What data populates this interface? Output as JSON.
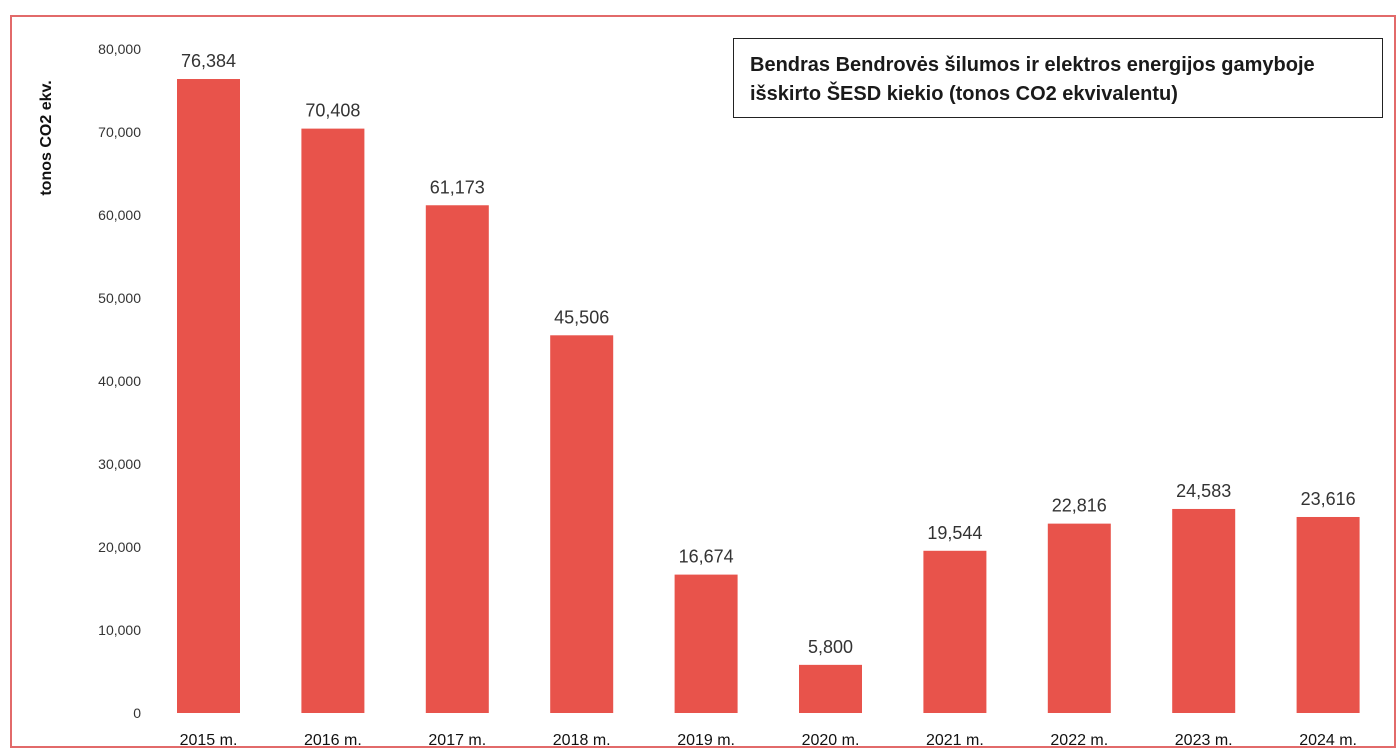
{
  "chart_data": {
    "type": "bar",
    "title": "Bendras Bendrovės šilumos ir elektros energijos gamyboje išskirto ŠESD kiekio (tonos CO2 ekvivalentu)",
    "xlabel": "",
    "ylabel": "tonos CO2 ekv.",
    "categories": [
      "2015 m.",
      "2016 m.",
      "2017 m.",
      "2018 m.",
      "2019 m.",
      "2020 m.",
      "2021 m.",
      "2022 m.",
      "2023 m.",
      "2024 m."
    ],
    "values": [
      76384,
      70408,
      61173,
      45506,
      16674,
      5800,
      19544,
      22816,
      24583,
      23616
    ],
    "data_labels": [
      "76,384",
      "70,408",
      "61,173",
      "45,506",
      "16,674",
      "5,800",
      "19,544",
      "22,816",
      "24,583",
      "23,616"
    ],
    "ylim": [
      0,
      80000
    ],
    "yticks": [
      {
        "value": 80000,
        "label": "80,000"
      },
      {
        "value": 70000,
        "label": "70,000"
      },
      {
        "value": 60000,
        "label": "60,000"
      },
      {
        "value": 50000,
        "label": "50,000"
      },
      {
        "value": 40000,
        "label": "40,000"
      },
      {
        "value": 30000,
        "label": "30,000"
      },
      {
        "value": 20000,
        "label": "20,000"
      },
      {
        "value": 10000,
        "label": "10,000"
      },
      {
        "value": 0,
        "label": "0"
      }
    ],
    "grid": false,
    "color": "#e8534b",
    "frame_color": "#e26a6a"
  }
}
